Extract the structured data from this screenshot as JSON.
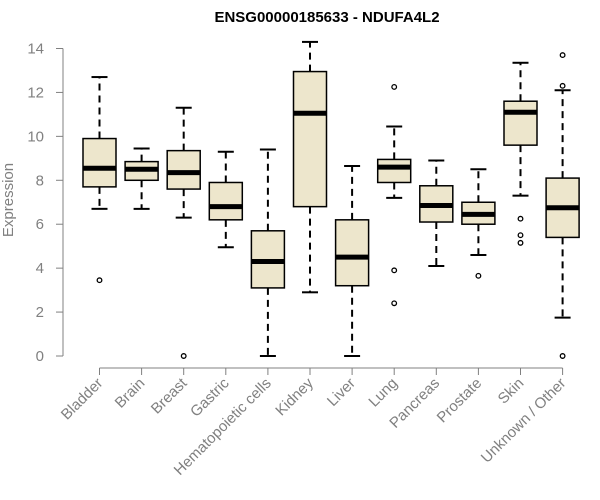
{
  "chart_data": {
    "type": "boxplot",
    "title": "ENSG00000185633 - NDUFA4L2",
    "xlabel": "",
    "ylabel": "Expression",
    "ylim": [
      0,
      14
    ],
    "yticks": [
      0,
      2,
      4,
      6,
      8,
      10,
      12,
      14
    ],
    "categories": [
      "Bladder",
      "Brain",
      "Breast",
      "Gastric",
      "Hematopoietic cells",
      "Kidney",
      "Liver",
      "Lung",
      "Pancreas",
      "Prostate",
      "Skin",
      "Unknown / Other"
    ],
    "series": [
      {
        "name": "Bladder",
        "whisker_low": 6.7,
        "q1": 7.7,
        "median": 8.55,
        "q3": 9.9,
        "whisker_high": 12.7,
        "outliers": [
          3.45
        ]
      },
      {
        "name": "Brain",
        "whisker_low": 6.7,
        "q1": 8.0,
        "median": 8.5,
        "q3": 8.85,
        "whisker_high": 9.45,
        "outliers": []
      },
      {
        "name": "Breast",
        "whisker_low": 6.3,
        "q1": 7.6,
        "median": 8.35,
        "q3": 9.35,
        "whisker_high": 11.3,
        "outliers": [
          0.0
        ]
      },
      {
        "name": "Gastric",
        "whisker_low": 4.95,
        "q1": 6.2,
        "median": 6.8,
        "q3": 7.9,
        "whisker_high": 9.3,
        "outliers": []
      },
      {
        "name": "Hematopoietic cells",
        "whisker_low": 0.0,
        "q1": 3.1,
        "median": 4.3,
        "q3": 5.7,
        "whisker_high": 9.4,
        "outliers": []
      },
      {
        "name": "Kidney",
        "whisker_low": 2.9,
        "q1": 6.8,
        "median": 11.05,
        "q3": 12.95,
        "whisker_high": 14.3,
        "outliers": []
      },
      {
        "name": "Liver",
        "whisker_low": 0.0,
        "q1": 3.2,
        "median": 4.5,
        "q3": 6.2,
        "whisker_high": 8.65,
        "outliers": []
      },
      {
        "name": "Lung",
        "whisker_low": 7.2,
        "q1": 7.9,
        "median": 8.6,
        "q3": 8.95,
        "whisker_high": 10.45,
        "outliers": [
          12.25,
          3.9,
          2.4
        ]
      },
      {
        "name": "Pancreas",
        "whisker_low": 4.1,
        "q1": 6.1,
        "median": 6.85,
        "q3": 7.75,
        "whisker_high": 8.9,
        "outliers": []
      },
      {
        "name": "Prostate",
        "whisker_low": 4.6,
        "q1": 6.0,
        "median": 6.45,
        "q3": 7.0,
        "whisker_high": 8.5,
        "outliers": [
          3.65
        ]
      },
      {
        "name": "Skin",
        "whisker_low": 7.3,
        "q1": 9.6,
        "median": 11.1,
        "q3": 11.6,
        "whisker_high": 13.35,
        "outliers": [
          6.25,
          5.5,
          5.15
        ]
      },
      {
        "name": "Unknown / Other",
        "whisker_low": 1.75,
        "q1": 5.4,
        "median": 6.75,
        "q3": 8.1,
        "whisker_high": 12.1,
        "outliers": [
          13.7,
          12.3,
          0.0
        ]
      }
    ],
    "box_fill": "#ede6cc",
    "box_stroke": "#000000",
    "axis_color": "#808080"
  }
}
